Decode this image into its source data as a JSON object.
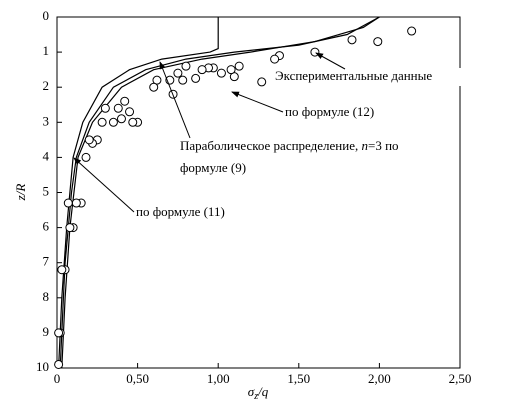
{
  "chart_data": {
    "type": "line",
    "x_label": {
      "symbol": "σ",
      "subscript": "z",
      "rest": "/q"
    },
    "y_label": "z/R",
    "xlim": [
      0,
      2.5
    ],
    "ylim": [
      0,
      10
    ],
    "y_reversed": true,
    "xticks": [
      0,
      {
        "value": 0.5,
        "label": "0,50"
      },
      {
        "value": 1,
        "label": "1,00"
      },
      {
        "value": 1.5,
        "label": "1,50"
      },
      {
        "value": 2,
        "label": "2,00"
      },
      {
        "value": 2.5,
        "label": "2,50"
      }
    ],
    "yticks": [
      0,
      1,
      2,
      3,
      4,
      5,
      6,
      7,
      8,
      9,
      10
    ],
    "series": [
      {
        "color": "#000000",
        "marker": "none",
        "x": [
          0.02,
          0.03,
          0.04,
          0.05,
          0.07,
          0.09,
          0.12,
          0.2,
          0.35,
          0.55,
          0.8,
          1.1,
          1.5,
          1.8,
          2.0
        ],
        "values": [
          10,
          9,
          8,
          7,
          6,
          5,
          4,
          3,
          2,
          1.5,
          1.2,
          1.0,
          0.8,
          0.5,
          0
        ]
      },
      {
        "color": "#000000",
        "marker": "none",
        "x": [
          0.01,
          0.03,
          0.06,
          0.1,
          0.16,
          0.28,
          0.45,
          0.65,
          0.95,
          1.0,
          1.0
        ],
        "values": [
          10,
          8,
          6,
          4,
          3,
          2,
          1.5,
          1.2,
          1.0,
          0.9,
          0
        ]
      },
      {
        "color": "#000000",
        "marker": "none",
        "x": [
          0.03,
          0.05,
          0.08,
          0.13,
          0.22,
          0.4,
          0.6,
          0.9,
          1.2,
          1.6,
          1.9,
          2.0
        ],
        "values": [
          10,
          8,
          6,
          4,
          3,
          2,
          1.5,
          1.2,
          1.0,
          0.7,
          0.3,
          0
        ]
      },
      {
        "color": "#000000",
        "marker": "circle",
        "x": [
          2.2,
          1.99,
          1.83,
          1.6,
          1.38,
          1.35,
          1.27,
          1.1,
          1.13,
          1.08,
          1.02,
          0.97,
          0.94,
          0.9,
          0.86,
          0.8,
          0.78,
          0.75,
          0.72,
          0.7,
          0.62,
          0.6,
          0.5,
          0.47,
          0.45,
          0.42,
          0.4,
          0.38,
          0.35,
          0.3,
          0.28,
          0.25,
          0.22,
          0.2,
          0.18,
          0.15,
          0.12,
          0.1,
          0.08,
          0.07,
          0.05,
          0.03,
          0.02,
          0.01,
          0.01
        ],
        "values": [
          0.4,
          0.7,
          0.65,
          1.0,
          1.1,
          1.2,
          1.85,
          1.7,
          1.4,
          1.5,
          1.6,
          1.45,
          1.45,
          1.5,
          1.75,
          1.4,
          1.8,
          1.6,
          2.2,
          1.8,
          1.8,
          2.0,
          3.0,
          3.0,
          2.7,
          2.4,
          2.9,
          2.6,
          3.0,
          2.6,
          3.0,
          3.5,
          3.6,
          3.5,
          4.0,
          5.3,
          5.3,
          6.0,
          6.0,
          5.3,
          7.2,
          7.2,
          9.0,
          9.0,
          9.9
        ]
      }
    ],
    "annotations": [
      {
        "text": "Экспериментальные данные"
      },
      {
        "text": "по формуле (12)"
      },
      {
        "parts": [
          "Параболическое распределение, ",
          "n",
          "=3 по"
        ],
        "line2": "формуле (9)"
      },
      {
        "text": "по формуле (11)"
      }
    ]
  }
}
